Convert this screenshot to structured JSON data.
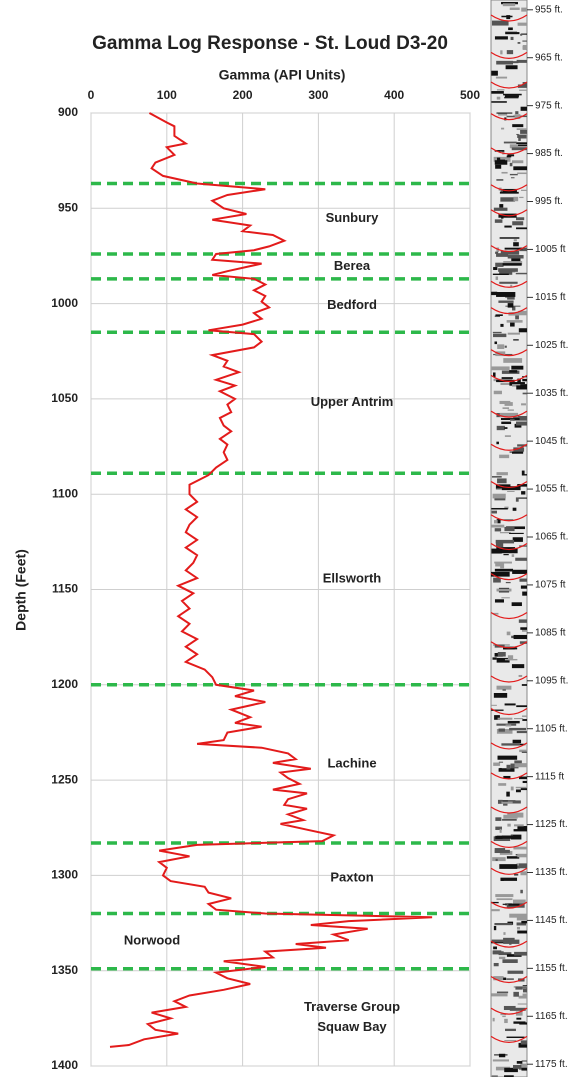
{
  "chart_data": [
    {
      "type": "line",
      "title": "Gamma Log Response - St. Loud D3-20",
      "x_label": "Gamma (API Units)",
      "y_label": "Depth (Feet)",
      "color": "#e31b1b",
      "xlim": [
        0,
        500
      ],
      "xticks": [
        0,
        100,
        200,
        300,
        400,
        500
      ],
      "ylim": [
        900,
        1400
      ],
      "yticks": [
        900,
        950,
        1000,
        1050,
        1100,
        1150,
        1200,
        1250,
        1300,
        1350,
        1400
      ],
      "y_inverted": true,
      "grid": true,
      "depth": [
        900,
        905,
        907,
        912,
        916,
        918,
        922,
        926,
        929,
        933,
        937,
        940,
        943,
        946,
        950,
        953,
        956,
        959,
        962,
        964,
        967,
        970,
        972,
        974,
        977,
        979,
        983,
        985,
        987,
        990,
        993,
        996,
        999,
        1002,
        1005,
        1008,
        1011,
        1014,
        1016,
        1020,
        1023,
        1027,
        1030,
        1033,
        1036,
        1040,
        1043,
        1046,
        1050,
        1053,
        1057,
        1060,
        1064,
        1067,
        1071,
        1074,
        1078,
        1082,
        1086,
        1090,
        1095,
        1100,
        1104,
        1108,
        1112,
        1116,
        1120,
        1124,
        1128,
        1132,
        1136,
        1140,
        1144,
        1148,
        1152,
        1156,
        1160,
        1164,
        1168,
        1172,
        1176,
        1180,
        1184,
        1188,
        1192,
        1196,
        1200,
        1203,
        1206,
        1209,
        1213,
        1217,
        1220,
        1222,
        1225,
        1229,
        1231,
        1233,
        1236,
        1239,
        1241,
        1244,
        1246,
        1249,
        1252,
        1255,
        1257,
        1260,
        1263,
        1265,
        1268,
        1271,
        1273,
        1276,
        1279,
        1282,
        1284,
        1287,
        1290,
        1293,
        1296,
        1300,
        1303,
        1306,
        1309,
        1312,
        1315,
        1318,
        1320,
        1322,
        1324,
        1326,
        1328,
        1331,
        1334,
        1336,
        1338,
        1340,
        1343,
        1345,
        1348,
        1351,
        1354,
        1357,
        1360,
        1363,
        1366,
        1369,
        1372,
        1375,
        1378,
        1381,
        1383,
        1386,
        1389,
        1390
      ],
      "values": [
        77,
        100,
        110,
        110,
        125,
        100,
        110,
        85,
        80,
        95,
        140,
        230,
        180,
        160,
        175,
        205,
        160,
        210,
        200,
        240,
        255,
        235,
        215,
        165,
        160,
        225,
        180,
        160,
        215,
        230,
        215,
        230,
        225,
        235,
        215,
        225,
        200,
        155,
        215,
        225,
        215,
        160,
        180,
        175,
        195,
        165,
        190,
        170,
        190,
        180,
        185,
        170,
        175,
        185,
        170,
        180,
        175,
        180,
        165,
        155,
        130,
        130,
        140,
        125,
        140,
        130,
        125,
        140,
        125,
        140,
        135,
        125,
        140,
        115,
        135,
        120,
        130,
        115,
        130,
        120,
        140,
        125,
        140,
        125,
        150,
        160,
        165,
        215,
        190,
        230,
        185,
        210,
        190,
        225,
        180,
        175,
        140,
        225,
        260,
        270,
        240,
        290,
        250,
        260,
        275,
        240,
        285,
        260,
        255,
        285,
        260,
        280,
        250,
        285,
        320,
        305,
        140,
        90,
        130,
        90,
        100,
        95,
        105,
        150,
        155,
        185,
        155,
        165,
        230,
        450,
        340,
        290,
        365,
        320,
        340,
        270,
        310,
        230,
        240,
        175,
        230,
        165,
        180,
        210,
        175,
        130,
        110,
        125,
        80,
        105,
        75,
        85,
        115,
        70,
        50,
        25
      ],
      "boundary_color": "#2db84a",
      "boundaries": [
        937,
        974,
        987,
        1015,
        1089,
        1200,
        1283,
        1320,
        1349
      ],
      "formations": [
        "Sunbury",
        "Berea",
        "Bedford",
        "Upper Antrim",
        "Ellsworth",
        "Lachine",
        "Paxton",
        "Norwood",
        [
          "Traverse Group",
          "Squaw Bay"
        ]
      ]
    },
    {
      "type": "core-image",
      "ylim": [
        954,
        1176
      ],
      "yticks": [
        {
          "value": 955,
          "label": "955 ft."
        },
        {
          "value": 965,
          "label": "965 ft."
        },
        {
          "value": 975,
          "label": "975 ft."
        },
        {
          "value": 985,
          "label": "985 ft."
        },
        {
          "value": 995,
          "label": "995 ft."
        },
        {
          "value": 1005,
          "label": "1005 ft"
        },
        {
          "value": 1015,
          "label": "1015 ft"
        },
        {
          "value": 1025,
          "label": "1025 ft."
        },
        {
          "value": 1035,
          "label": "1035 ft."
        },
        {
          "value": 1045,
          "label": "1045 ft."
        },
        {
          "value": 1055,
          "label": "1055 ft."
        },
        {
          "value": 1065,
          "label": "1065 ft."
        },
        {
          "value": 1075,
          "label": "1075 ft"
        },
        {
          "value": 1085,
          "label": "1085 ft"
        },
        {
          "value": 1095,
          "label": "1095 ft."
        },
        {
          "value": 1105,
          "label": "1105 ft."
        },
        {
          "value": 1115,
          "label": "1115 ft"
        },
        {
          "value": 1125,
          "label": "1125 ft."
        },
        {
          "value": 1135,
          "label": "1135 ft."
        },
        {
          "value": 1145,
          "label": "1145 ft."
        },
        {
          "value": 1155,
          "label": "1155 ft."
        },
        {
          "value": 1165,
          "label": "1165 ft."
        },
        {
          "value": 1175,
          "label": "1175 ft."
        }
      ]
    }
  ]
}
